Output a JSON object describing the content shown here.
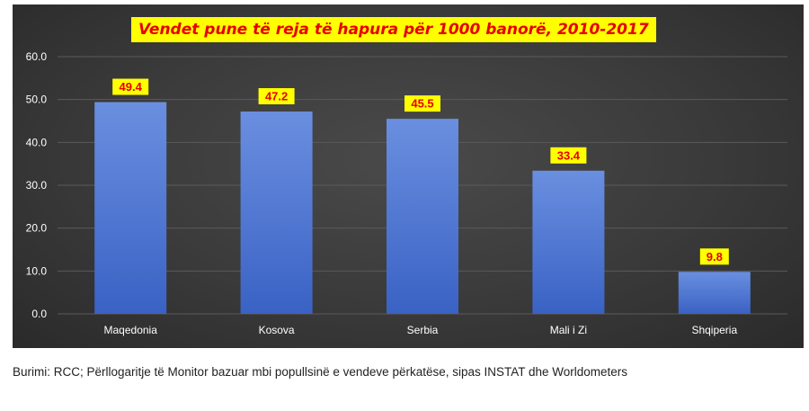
{
  "chart_data": {
    "type": "bar",
    "title": "Vendet pune të reja të hapura për 1000 banorë, 2010-2017",
    "categories": [
      "Maqedonia",
      "Kosova",
      "Serbia",
      "Mali i Zi",
      "Shqiperia"
    ],
    "values": [
      49.4,
      47.2,
      45.5,
      33.4,
      9.8
    ],
    "data_labels": [
      "49.4",
      "47.2",
      "45.5",
      "33.4",
      "9.8"
    ],
    "ylim": [
      0,
      60
    ],
    "yticks": [
      "0.0",
      "10.0",
      "20.0",
      "30.0",
      "40.0",
      "50.0",
      "60.0"
    ],
    "ytick_values": [
      0,
      10,
      20,
      30,
      40,
      50,
      60
    ],
    "grid": true,
    "legend": "none",
    "colors": {
      "background": "#3a3a3a",
      "bar_top": "#6a8fe0",
      "bar_bottom": "#3a62c4",
      "label_bg": "#ffff00",
      "label_text": "#e60000",
      "title_bg": "#ffff00",
      "title_text": "#e60000",
      "axis_text": "#ffffff",
      "grid": "#5a5a5a"
    }
  },
  "source_note": "Burimi: RCC; Përllogaritje të Monitor bazuar mbi popullsinë e vendeve përkatëse, sipas INSTAT dhe Worldometers"
}
